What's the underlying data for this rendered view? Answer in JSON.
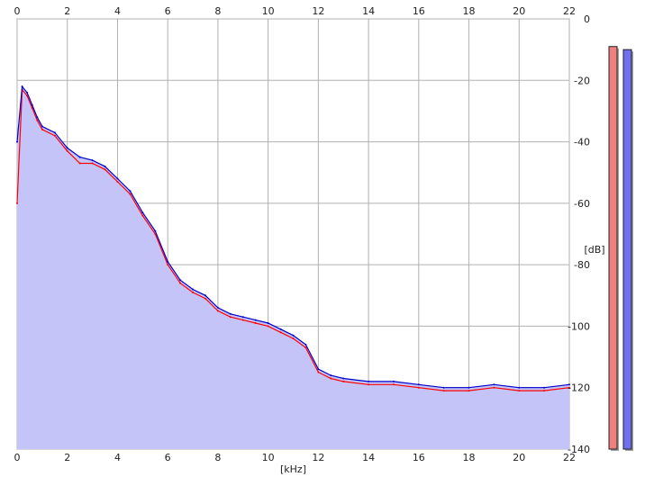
{
  "chart_data": {
    "type": "area",
    "xlabel": "[kHz]",
    "ylabel": "[dB]",
    "xlim": [
      0,
      22
    ],
    "ylim": [
      -140,
      0
    ],
    "x_ticks": [
      0,
      2,
      4,
      6,
      8,
      10,
      12,
      14,
      16,
      18,
      20,
      22
    ],
    "y_ticks": [
      0,
      -20,
      -40,
      -60,
      -80,
      -100,
      -120,
      -140
    ],
    "grid": true,
    "series": [
      {
        "color": "#ff0000",
        "x": [
          0,
          0.2,
          0.4,
          0.6,
          0.8,
          1.0,
          1.5,
          2.0,
          2.5,
          3.0,
          3.5,
          4.0,
          4.5,
          5.0,
          5.5,
          6.0,
          6.5,
          7.0,
          7.5,
          8.0,
          8.5,
          9.0,
          9.5,
          10.0,
          10.5,
          11.0,
          11.5,
          12.0,
          12.5,
          13.0,
          14.0,
          15.0,
          16.0,
          17.0,
          18.0,
          19.0,
          20.0,
          21.0,
          22.0
        ],
        "values": [
          -60,
          -23,
          -25,
          -29,
          -33,
          -36,
          -38,
          -43,
          -47,
          -47,
          -49,
          -53,
          -57,
          -64,
          -70,
          -80,
          -86,
          -89,
          -91,
          -95,
          -97,
          -98,
          -99,
          -100,
          -102,
          -104,
          -107,
          -115,
          -117,
          -118,
          -119,
          -119,
          -120,
          -121,
          -121,
          -120,
          -121,
          -121,
          -120
        ]
      },
      {
        "color": "#0000cc",
        "x": [
          0,
          0.2,
          0.4,
          0.6,
          0.8,
          1.0,
          1.5,
          2.0,
          2.5,
          3.0,
          3.5,
          4.0,
          4.5,
          5.0,
          5.5,
          6.0,
          6.5,
          7.0,
          7.5,
          8.0,
          8.5,
          9.0,
          9.5,
          10.0,
          10.5,
          11.0,
          11.5,
          12.0,
          12.5,
          13.0,
          14.0,
          15.0,
          16.0,
          17.0,
          18.0,
          19.0,
          20.0,
          21.0,
          22.0
        ],
        "values": [
          -40,
          -22,
          -24,
          -28,
          -32,
          -35,
          -37,
          -42,
          -45,
          -46,
          -48,
          -52,
          -56,
          -63,
          -69,
          -79,
          -85,
          -88,
          -90,
          -94,
          -96,
          -97,
          -98,
          -99,
          -101,
          -103,
          -106,
          -114,
          -116,
          -117,
          -118,
          -118,
          -119,
          -120,
          -120,
          -119,
          -120,
          -120,
          -119
        ]
      }
    ],
    "fill_color": "#c4c4f8",
    "levels": [
      {
        "color": "#f08080",
        "value_db": -9
      },
      {
        "color": "#7070f0",
        "value_db": -10
      }
    ]
  }
}
